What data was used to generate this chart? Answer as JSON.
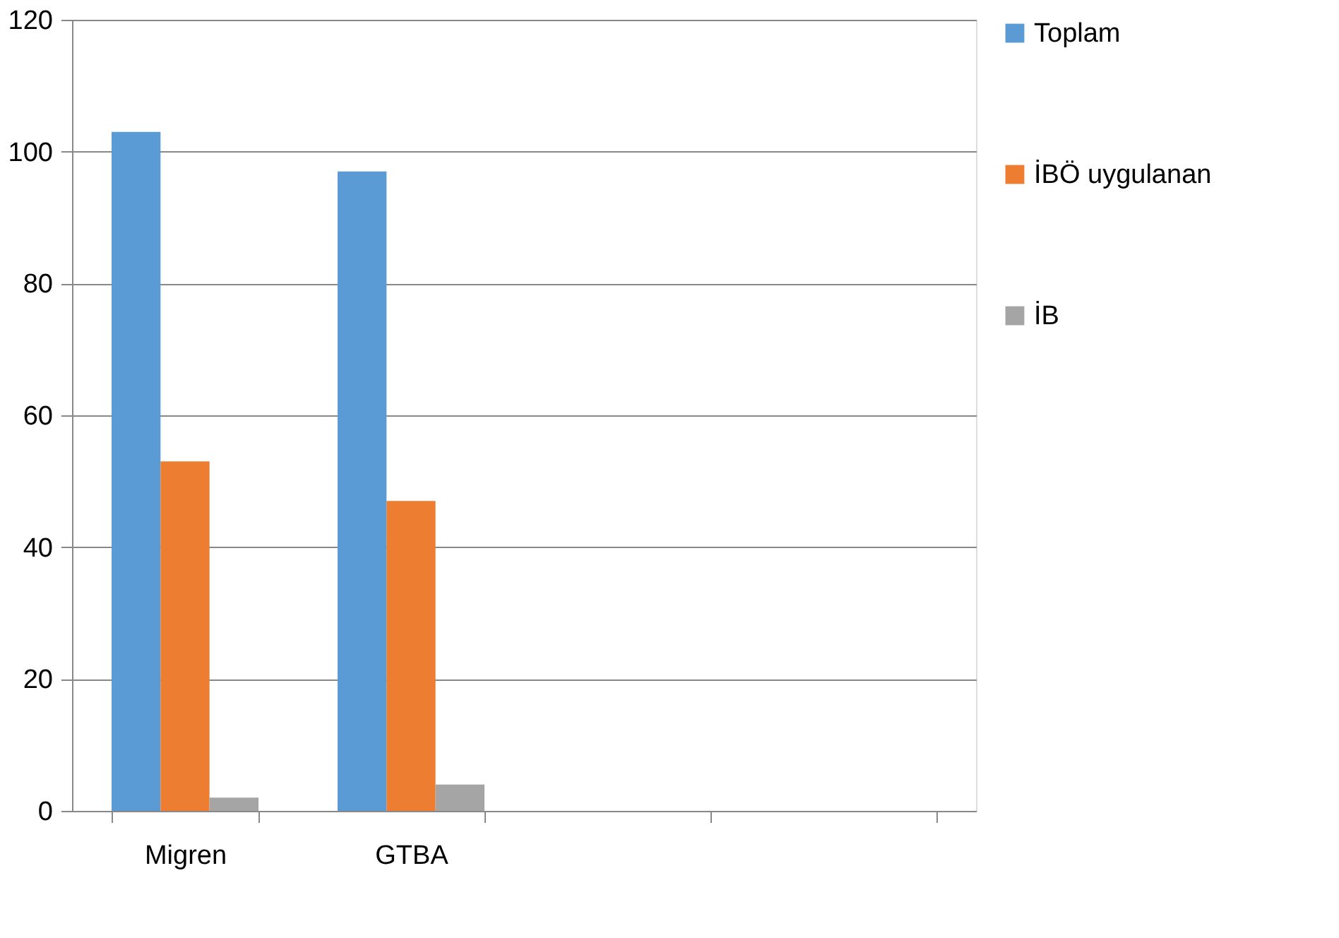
{
  "chart_data": {
    "type": "bar",
    "categories": [
      "Migren",
      "GTBA",
      null,
      null
    ],
    "series": [
      {
        "name": "Toplam",
        "color": "#5b9bd5",
        "values": [
          103,
          97,
          null,
          null
        ]
      },
      {
        "name": "İBÖ uygulanan",
        "color": "#ed7d31",
        "values": [
          53,
          47,
          null,
          null
        ]
      },
      {
        "name": "İB",
        "color": "#a5a5a5",
        "values": [
          2,
          4,
          null,
          null
        ]
      }
    ],
    "ylim": [
      0,
      120
    ],
    "yticks": [
      0,
      20,
      40,
      60,
      80,
      100,
      120
    ],
    "grid": "y",
    "legend": "right"
  }
}
